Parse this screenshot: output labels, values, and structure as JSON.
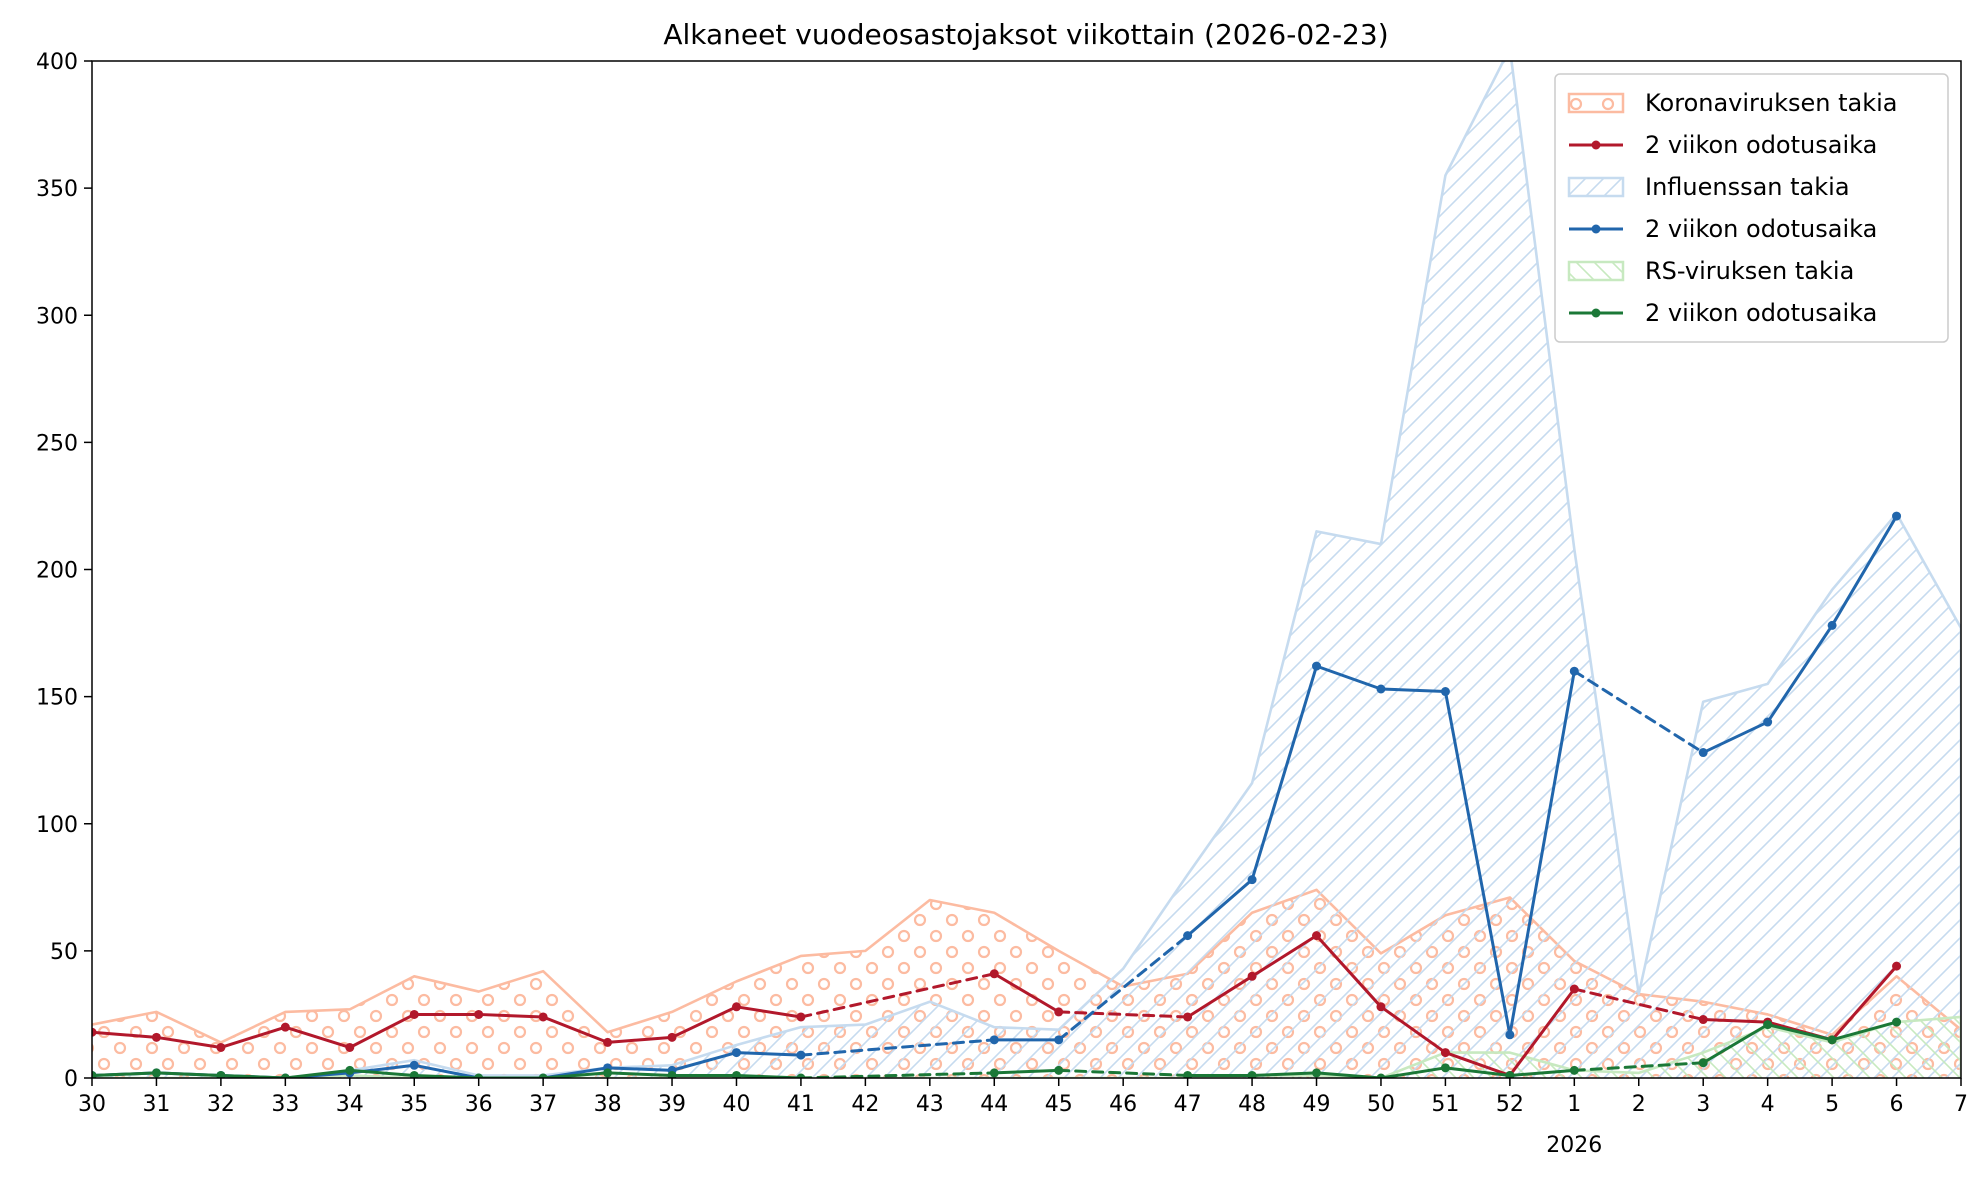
{
  "chart_data": {
    "type": "area",
    "title": "Alkaneet vuodeosastojaksot viikottain (2026-02-23)",
    "xlabel": "",
    "ylabel": "",
    "categories": [
      "30",
      "31",
      "32",
      "33",
      "34",
      "35",
      "36",
      "37",
      "38",
      "39",
      "40",
      "41",
      "42",
      "43",
      "44",
      "45",
      "46",
      "47",
      "48",
      "49",
      "50",
      "51",
      "52",
      "1",
      "2",
      "3",
      "4",
      "5",
      "6",
      "7"
    ],
    "year_label": "2026",
    "year_label_at": "1",
    "ylim": [
      0,
      400
    ],
    "yticks": [
      0,
      50,
      100,
      150,
      200,
      250,
      300,
      350,
      400
    ],
    "grid": false,
    "legend_position": "top-right",
    "series": [
      {
        "name": "Koronaviruksen takia",
        "kind": "area",
        "pattern": "circles",
        "color": "#fcbba1",
        "values": [
          21,
          26,
          14,
          26,
          27,
          40,
          34,
          42,
          18,
          26,
          38,
          48,
          50,
          70,
          65,
          50,
          36,
          41,
          65,
          74,
          49,
          64,
          71,
          46,
          33,
          30,
          25,
          17,
          40,
          19
        ]
      },
      {
        "name": "2 viikon odotusaika",
        "kind": "line",
        "color": "#b2182b",
        "points": [
          {
            "x": "30",
            "y": 18
          },
          {
            "x": "31",
            "y": 16
          },
          {
            "x": "32",
            "y": 12
          },
          {
            "x": "33",
            "y": 20
          },
          {
            "x": "34",
            "y": 12
          },
          {
            "x": "35",
            "y": 25
          },
          {
            "x": "36",
            "y": 25
          },
          {
            "x": "37",
            "y": 24
          },
          {
            "x": "38",
            "y": 14
          },
          {
            "x": "39",
            "y": 16
          },
          {
            "x": "40",
            "y": 28
          },
          {
            "x": "41",
            "y": 24
          },
          {
            "x": "44",
            "y": 41
          },
          {
            "x": "45",
            "y": 26
          },
          {
            "x": "47",
            "y": 24
          },
          {
            "x": "48",
            "y": 40
          },
          {
            "x": "49",
            "y": 56
          },
          {
            "x": "50",
            "y": 28
          },
          {
            "x": "51",
            "y": 10
          },
          {
            "x": "52",
            "y": 1
          },
          {
            "x": "1",
            "y": 35
          },
          {
            "x": "3",
            "y": 23
          },
          {
            "x": "4",
            "y": 22
          },
          {
            "x": "5",
            "y": 15
          },
          {
            "x": "6",
            "y": 44
          }
        ]
      },
      {
        "name": "Influenssan takia",
        "kind": "area",
        "pattern": "diagonal",
        "color": "#c6dbef",
        "values": [
          1,
          2,
          1,
          0,
          3,
          7,
          1,
          1,
          4,
          5,
          13,
          20,
          21,
          30,
          20,
          19,
          43,
          80,
          116,
          215,
          210,
          355,
          405,
          208,
          33,
          148,
          155,
          192,
          222,
          177
        ]
      },
      {
        "name": "2 viikon odotusaika",
        "kind": "line",
        "color": "#2166ac",
        "points": [
          {
            "x": "30",
            "y": 1
          },
          {
            "x": "31",
            "y": 2
          },
          {
            "x": "32",
            "y": 1
          },
          {
            "x": "33",
            "y": 0
          },
          {
            "x": "34",
            "y": 2
          },
          {
            "x": "35",
            "y": 5
          },
          {
            "x": "36",
            "y": 0
          },
          {
            "x": "37",
            "y": 0
          },
          {
            "x": "38",
            "y": 4
          },
          {
            "x": "39",
            "y": 3
          },
          {
            "x": "40",
            "y": 10
          },
          {
            "x": "41",
            "y": 9
          },
          {
            "x": "44",
            "y": 15
          },
          {
            "x": "45",
            "y": 15
          },
          {
            "x": "47",
            "y": 56
          },
          {
            "x": "48",
            "y": 78
          },
          {
            "x": "49",
            "y": 162
          },
          {
            "x": "50",
            "y": 153
          },
          {
            "x": "51",
            "y": 152
          },
          {
            "x": "52",
            "y": 17
          },
          {
            "x": "1",
            "y": 160
          },
          {
            "x": "3",
            "y": 128
          },
          {
            "x": "4",
            "y": 140
          },
          {
            "x": "5",
            "y": 178
          },
          {
            "x": "6",
            "y": 221
          }
        ]
      },
      {
        "name": "RS-viruksen takia",
        "kind": "area",
        "pattern": "backdiagonal",
        "color": "#c7e9c0",
        "values": [
          0,
          0,
          0,
          0,
          1,
          0,
          0,
          0,
          0,
          0,
          0,
          0,
          0,
          0,
          0,
          0,
          0,
          0,
          1,
          1,
          0,
          10,
          10,
          3,
          2,
          10,
          20,
          14,
          22,
          24
        ]
      },
      {
        "name": "2 viikon odotusaika",
        "kind": "line",
        "color": "#1b7837",
        "points": [
          {
            "x": "30",
            "y": 1
          },
          {
            "x": "31",
            "y": 2
          },
          {
            "x": "32",
            "y": 1
          },
          {
            "x": "33",
            "y": 0
          },
          {
            "x": "34",
            "y": 3
          },
          {
            "x": "35",
            "y": 1
          },
          {
            "x": "36",
            "y": 0
          },
          {
            "x": "37",
            "y": 0
          },
          {
            "x": "38",
            "y": 2
          },
          {
            "x": "39",
            "y": 1
          },
          {
            "x": "40",
            "y": 1
          },
          {
            "x": "41",
            "y": 0
          },
          {
            "x": "44",
            "y": 2
          },
          {
            "x": "45",
            "y": 3
          },
          {
            "x": "47",
            "y": 1
          },
          {
            "x": "48",
            "y": 1
          },
          {
            "x": "49",
            "y": 2
          },
          {
            "x": "50",
            "y": 0
          },
          {
            "x": "51",
            "y": 4
          },
          {
            "x": "52",
            "y": 1
          },
          {
            "x": "1",
            "y": 3
          },
          {
            "x": "3",
            "y": 6
          },
          {
            "x": "4",
            "y": 21
          },
          {
            "x": "5",
            "y": 15
          },
          {
            "x": "6",
            "y": 22
          }
        ]
      }
    ]
  }
}
